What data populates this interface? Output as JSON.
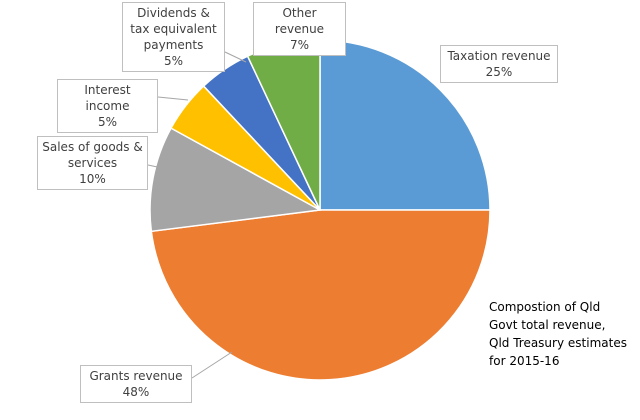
{
  "chart_data": {
    "type": "pie",
    "categories": [
      "Taxation revenue",
      "Grants revenue",
      "Sales of goods & services",
      "Interest income",
      "Dividends & tax equivalent payments",
      "Other revenue"
    ],
    "values": [
      25,
      48,
      10,
      5,
      5,
      7
    ],
    "value_labels": [
      "25%",
      "48%",
      "10%",
      "5%",
      "5%",
      "7%"
    ],
    "colors": [
      "#5b9bd5",
      "#ed7d31",
      "#a5a5a5",
      "#ffc000",
      "#4472c4",
      "#70ad47"
    ],
    "annotation": "Compostion of Qld Govt total revenue, Qld Treasury estimates for 2015-16"
  }
}
